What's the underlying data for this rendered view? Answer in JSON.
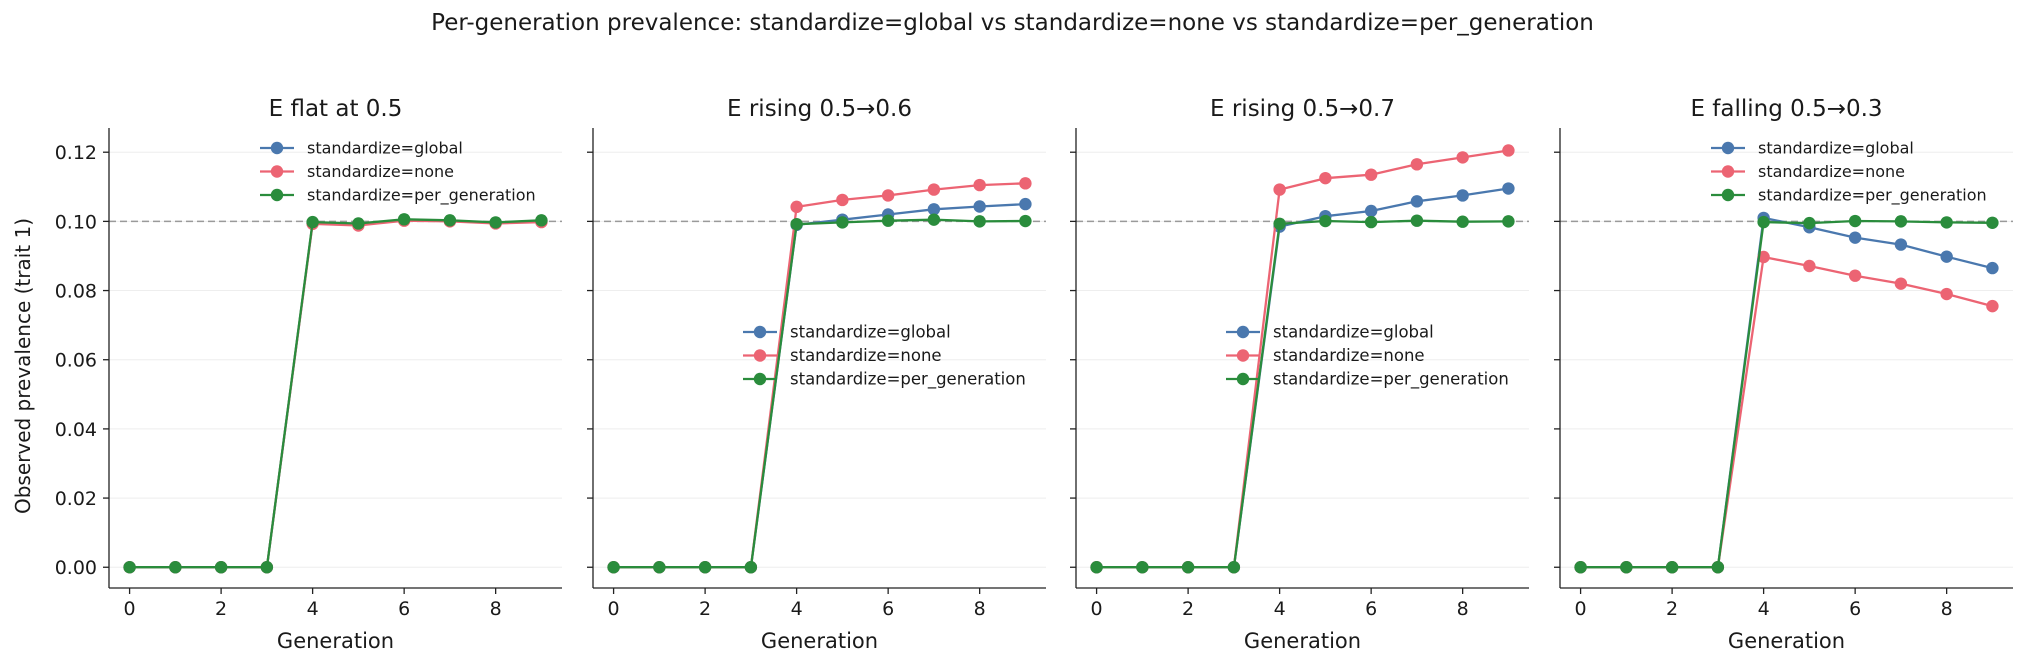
{
  "figure": {
    "suptitle": "Per-generation prevalence: standardize=global vs standardize=none vs standardize=per_generation",
    "shared_ylabel": "Observed prevalence (trait 1)"
  },
  "colors": {
    "global": "#4a78ae",
    "none": "#ec6473",
    "per_generation": "#2a8c3c",
    "reference": "#9a9a9a"
  },
  "chart_data": [
    {
      "type": "line",
      "title": "E flat at 0.5",
      "xlabel": "Generation",
      "ylabel": "Observed prevalence (trait 1)",
      "x": [
        0,
        1,
        2,
        3,
        4,
        5,
        6,
        7,
        8,
        9
      ],
      "xlim": [
        -0.45,
        9.45
      ],
      "ylim": [
        -0.006,
        0.127
      ],
      "xticks": [
        0,
        2,
        4,
        6,
        8
      ],
      "yticks": [
        0.0,
        0.02,
        0.04,
        0.06,
        0.08,
        0.1,
        0.12
      ],
      "ytick_labels": [
        "0.00",
        "0.02",
        "0.04",
        "0.06",
        "0.08",
        "0.10",
        "0.12"
      ],
      "reference_line": 0.1,
      "grid": "horizontal, light",
      "legend": "upper center",
      "series": [
        {
          "name": "standardize=global",
          "color_key": "global",
          "values": [
            0,
            0,
            0,
            0,
            0.0995,
            0.0992,
            0.1004,
            0.1002,
            0.0996,
            0.1001
          ]
        },
        {
          "name": "standardize=none",
          "color_key": "none",
          "values": [
            0,
            0,
            0,
            0,
            0.0993,
            0.0988,
            0.1002,
            0.1,
            0.0994,
            0.0998
          ]
        },
        {
          "name": "standardize=per_generation",
          "color_key": "per_generation",
          "values": [
            0,
            0,
            0,
            0,
            0.0998,
            0.0994,
            0.1006,
            0.1003,
            0.0997,
            0.1003
          ]
        }
      ]
    },
    {
      "type": "line",
      "title": "E rising 0.5→0.6",
      "xlabel": "Generation",
      "x": [
        0,
        1,
        2,
        3,
        4,
        5,
        6,
        7,
        8,
        9
      ],
      "xlim": [
        -0.45,
        9.45
      ],
      "ylim": [
        -0.006,
        0.127
      ],
      "xticks": [
        0,
        2,
        4,
        6,
        8
      ],
      "yticks": [
        0.0,
        0.02,
        0.04,
        0.06,
        0.08,
        0.1,
        0.12
      ],
      "reference_line": 0.1,
      "grid": "horizontal, light",
      "legend": "center right",
      "series": [
        {
          "name": "standardize=global",
          "color_key": "global",
          "values": [
            0,
            0,
            0,
            0,
            0.099,
            0.1005,
            0.102,
            0.1035,
            0.1043,
            0.105
          ]
        },
        {
          "name": "standardize=none",
          "color_key": "none",
          "values": [
            0,
            0,
            0,
            0,
            0.1042,
            0.1062,
            0.1075,
            0.1092,
            0.1105,
            0.111
          ]
        },
        {
          "name": "standardize=per_generation",
          "color_key": "per_generation",
          "values": [
            0,
            0,
            0,
            0,
            0.0992,
            0.0997,
            0.1002,
            0.1005,
            0.1,
            0.1001
          ]
        }
      ]
    },
    {
      "type": "line",
      "title": "E rising 0.5→0.7",
      "xlabel": "Generation",
      "x": [
        0,
        1,
        2,
        3,
        4,
        5,
        6,
        7,
        8,
        9
      ],
      "xlim": [
        -0.45,
        9.45
      ],
      "ylim": [
        -0.006,
        0.127
      ],
      "xticks": [
        0,
        2,
        4,
        6,
        8
      ],
      "yticks": [
        0.0,
        0.02,
        0.04,
        0.06,
        0.08,
        0.1,
        0.12
      ],
      "reference_line": 0.1,
      "grid": "horizontal, light",
      "legend": "center right",
      "series": [
        {
          "name": "standardize=global",
          "color_key": "global",
          "values": [
            0,
            0,
            0,
            0,
            0.0985,
            0.1015,
            0.103,
            0.1058,
            0.1075,
            0.1095
          ]
        },
        {
          "name": "standardize=none",
          "color_key": "none",
          "values": [
            0,
            0,
            0,
            0,
            0.1092,
            0.1125,
            0.1135,
            0.1165,
            0.1185,
            0.1205
          ]
        },
        {
          "name": "standardize=per_generation",
          "color_key": "per_generation",
          "values": [
            0,
            0,
            0,
            0,
            0.0993,
            0.1001,
            0.0998,
            0.1002,
            0.0999,
            0.1
          ]
        }
      ]
    },
    {
      "type": "line",
      "title": "E falling 0.5→0.3",
      "xlabel": "Generation",
      "x": [
        0,
        1,
        2,
        3,
        4,
        5,
        6,
        7,
        8,
        9
      ],
      "xlim": [
        -0.45,
        9.45
      ],
      "ylim": [
        -0.006,
        0.127
      ],
      "xticks": [
        0,
        2,
        4,
        6,
        8
      ],
      "yticks": [
        0.0,
        0.02,
        0.04,
        0.06,
        0.08,
        0.1,
        0.12
      ],
      "reference_line": 0.1,
      "grid": "horizontal, light",
      "legend": "upper center",
      "series": [
        {
          "name": "standardize=global",
          "color_key": "global",
          "values": [
            0,
            0,
            0,
            0,
            0.101,
            0.0983,
            0.0953,
            0.0933,
            0.0898,
            0.0865
          ]
        },
        {
          "name": "standardize=none",
          "color_key": "none",
          "values": [
            0,
            0,
            0,
            0,
            0.0897,
            0.0871,
            0.0843,
            0.082,
            0.079,
            0.0755
          ]
        },
        {
          "name": "standardize=per_generation",
          "color_key": "per_generation",
          "values": [
            0,
            0,
            0,
            0,
            0.0998,
            0.0995,
            0.1001,
            0.1,
            0.0997,
            0.0996
          ]
        }
      ]
    }
  ]
}
